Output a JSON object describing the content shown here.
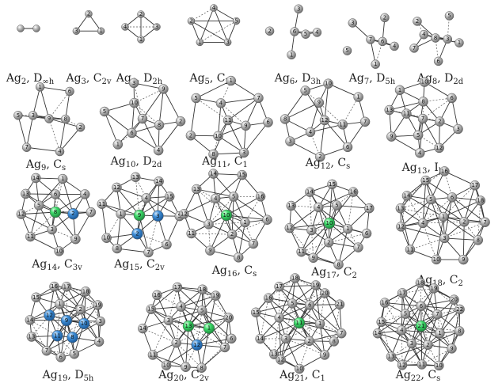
{
  "figure": {
    "colors": {
      "atom": "#9a9a9a",
      "atom_highlight": "#7e7e7e",
      "center": "#3ddc6a",
      "blue": "#3f8fd8",
      "bond": "#333333",
      "background": "#ffffff"
    },
    "clusters": [
      {
        "caption": "Ag2, D∞h",
        "atoms": [
          {},
          {}
        ]
      },
      {
        "caption": "Ag3, C2v",
        "atoms": [
          {
            "label": "2"
          },
          {
            "label": "1"
          },
          {
            "label": "3"
          }
        ]
      },
      {
        "caption": "Ag4, D2h",
        "atoms": [
          {
            "label": "2"
          },
          {
            "label": "3"
          },
          {
            "label": "1"
          },
          {
            "label": "4"
          }
        ]
      },
      {
        "caption": "Ag5, C2v",
        "atoms": [
          {
            "label": "4"
          },
          {
            "label": "5"
          },
          {
            "label": "3"
          },
          {
            "label": "1"
          },
          {
            "label": "2"
          }
        ]
      },
      {
        "caption": "Ag6, D3h",
        "atoms": [
          {
            "label": "6"
          },
          {
            "label": "5"
          },
          {
            "label": "4"
          },
          {
            "label": "1"
          },
          {
            "label": "2"
          },
          {
            "label": "3"
          }
        ]
      },
      {
        "caption": "Ag7, D5h",
        "atoms": [
          {
            "label": "7"
          },
          {
            "label": "6"
          },
          {
            "label": "4"
          },
          {
            "label": "1"
          },
          {
            "label": "5"
          },
          {
            "label": "3"
          },
          {
            "label": "2"
          }
        ]
      },
      {
        "caption": "Ag8, D2d",
        "atoms": [
          {
            "label": "8"
          },
          {
            "label": "3"
          },
          {
            "label": "4"
          },
          {
            "label": "1"
          },
          {
            "label": "6"
          },
          {
            "label": "7"
          },
          {
            "label": "2"
          },
          {
            "label": "5"
          }
        ]
      },
      {
        "caption": "Ag9, Cs",
        "atoms": [
          {
            "label": "9"
          },
          {
            "label": "8"
          },
          {
            "label": "3"
          },
          {
            "label": "2"
          },
          {
            "label": "4"
          },
          {
            "label": "7"
          },
          {
            "label": "5"
          },
          {
            "label": "1"
          },
          {
            "label": "6"
          }
        ]
      },
      {
        "caption": "Ag10, D2d",
        "atoms": [
          {
            "label": "7"
          },
          {
            "label": "8"
          },
          {
            "label": "6"
          },
          {
            "label": "10"
          },
          {
            "label": "2"
          },
          {
            "label": "4"
          },
          {
            "label": "1"
          },
          {
            "label": "5"
          },
          {
            "label": "3"
          },
          {
            "label": "9"
          }
        ]
      },
      {
        "caption": "Ag11, C1",
        "atoms": [
          {
            "label": "11"
          },
          {
            "label": "9"
          },
          {
            "label": "10"
          },
          {
            "label": "4"
          },
          {
            "label": "6"
          },
          {
            "label": "3"
          },
          {
            "label": "8"
          },
          {
            "label": "2"
          },
          {
            "label": "5"
          },
          {
            "label": "1"
          },
          {
            "label": "7"
          }
        ]
      },
      {
        "caption": "Ag12, Cs",
        "atoms": [
          {
            "label": "12"
          },
          {
            "label": "11"
          },
          {
            "label": "4"
          },
          {
            "label": "9"
          },
          {
            "label": "7"
          },
          {
            "label": "6"
          },
          {
            "label": "2"
          },
          {
            "label": "3"
          },
          {
            "label": "8"
          },
          {
            "label": "5"
          },
          {
            "label": "10"
          },
          {
            "label": "1"
          }
        ]
      },
      {
        "caption": "Ag13, Ih",
        "atoms": [
          {
            "label": "7"
          },
          {
            "label": "2"
          },
          {
            "label": "5"
          },
          {
            "label": "11"
          },
          {
            "label": "8"
          },
          {
            "label": "3"
          },
          {
            "label": "12"
          },
          {
            "label": "4"
          },
          {
            "label": "9"
          },
          {
            "label": "13"
          },
          {
            "label": "1"
          },
          {
            "label": "10"
          },
          {
            "label": "6"
          }
        ]
      },
      {
        "caption": "Ag14, C3v",
        "atoms": [
          {
            "label": "8",
            "color": "center"
          },
          {
            "label": "2",
            "color": "blue"
          },
          {
            "label": "3"
          },
          {
            "label": "5"
          },
          {
            "label": "6"
          },
          {
            "label": "7"
          },
          {
            "label": "9"
          },
          {
            "label": "10"
          },
          {
            "label": "11"
          },
          {
            "label": "12"
          },
          {
            "label": "13"
          },
          {
            "label": "14"
          },
          {
            "label": "1"
          },
          {
            "label": "4"
          }
        ]
      },
      {
        "caption": "Ag15, C2v",
        "atoms": [
          {
            "label": "9",
            "color": "center"
          },
          {
            "label": "3",
            "color": "blue"
          },
          {
            "label": "2",
            "color": "blue"
          },
          {
            "label": "1"
          },
          {
            "label": "4"
          },
          {
            "label": "5"
          },
          {
            "label": "6"
          },
          {
            "label": "7"
          },
          {
            "label": "8"
          },
          {
            "label": "10"
          },
          {
            "label": "11"
          },
          {
            "label": "12"
          },
          {
            "label": "13"
          },
          {
            "label": "14"
          },
          {
            "label": "15"
          }
        ]
      },
      {
        "caption": "Ag16, Cs",
        "atoms": [
          {
            "label": "10",
            "color": "center"
          },
          {
            "label": "1"
          },
          {
            "label": "2"
          },
          {
            "label": "3"
          },
          {
            "label": "4"
          },
          {
            "label": "5"
          },
          {
            "label": "6"
          },
          {
            "label": "7"
          },
          {
            "label": "8"
          },
          {
            "label": "9"
          },
          {
            "label": "11"
          },
          {
            "label": "12"
          },
          {
            "label": "13"
          },
          {
            "label": "14"
          },
          {
            "label": "15"
          },
          {
            "label": "16"
          }
        ]
      },
      {
        "caption": "Ag17, C2",
        "atoms": [
          {
            "label": "10",
            "color": "center"
          },
          {
            "label": "1"
          },
          {
            "label": "2"
          },
          {
            "label": "3"
          },
          {
            "label": "4"
          },
          {
            "label": "5"
          },
          {
            "label": "6"
          },
          {
            "label": "7"
          },
          {
            "label": "8"
          },
          {
            "label": "9"
          },
          {
            "label": "11"
          },
          {
            "label": "12"
          },
          {
            "label": "13"
          },
          {
            "label": "14"
          },
          {
            "label": "15"
          },
          {
            "label": "16"
          },
          {
            "label": "17"
          }
        ]
      },
      {
        "caption": "Ag18, C2",
        "atoms": [
          {
            "label": "1"
          },
          {
            "label": "2"
          },
          {
            "label": "3"
          },
          {
            "label": "4"
          },
          {
            "label": "5"
          },
          {
            "label": "6"
          },
          {
            "label": "7"
          },
          {
            "label": "8"
          },
          {
            "label": "9"
          },
          {
            "label": "10"
          },
          {
            "label": "11"
          },
          {
            "label": "12"
          },
          {
            "label": "13"
          },
          {
            "label": "14"
          },
          {
            "label": "15"
          },
          {
            "label": "16"
          },
          {
            "label": "17"
          },
          {
            "label": "18"
          }
        ]
      },
      {
        "caption": "Ag19, D5h",
        "atoms": [
          {
            "label": "9",
            "color": "blue"
          },
          {
            "label": "10",
            "color": "blue"
          },
          {
            "label": "8",
            "color": "blue"
          },
          {
            "label": "11",
            "color": "blue"
          },
          {
            "label": "12",
            "color": "blue"
          },
          {
            "label": "1"
          },
          {
            "label": "2"
          },
          {
            "label": "3"
          },
          {
            "label": "4"
          },
          {
            "label": "5"
          },
          {
            "label": "6"
          },
          {
            "label": "7"
          },
          {
            "label": "13"
          },
          {
            "label": "14"
          },
          {
            "label": "15"
          },
          {
            "label": "16"
          },
          {
            "label": "17"
          },
          {
            "label": "18"
          },
          {
            "label": "19"
          }
        ]
      },
      {
        "caption": "Ag20, C2v",
        "atoms": [
          {
            "label": "13",
            "color": "center"
          },
          {
            "label": "1",
            "color": "center"
          },
          {
            "label": "12",
            "color": "blue"
          },
          {
            "label": "2"
          },
          {
            "label": "3"
          },
          {
            "label": "4"
          },
          {
            "label": "5"
          },
          {
            "label": "6"
          },
          {
            "label": "7"
          },
          {
            "label": "8"
          },
          {
            "label": "9"
          },
          {
            "label": "10"
          },
          {
            "label": "11"
          },
          {
            "label": "14"
          },
          {
            "label": "15"
          },
          {
            "label": "16"
          },
          {
            "label": "17"
          },
          {
            "label": "18"
          },
          {
            "label": "19"
          },
          {
            "label": "20"
          }
        ]
      },
      {
        "caption": "Ag21, C1",
        "atoms": [
          {
            "label": "11",
            "color": "center"
          },
          {
            "label": "1"
          },
          {
            "label": "2"
          },
          {
            "label": "3"
          },
          {
            "label": "4"
          },
          {
            "label": "5"
          },
          {
            "label": "6"
          },
          {
            "label": "7"
          },
          {
            "label": "8"
          },
          {
            "label": "9"
          },
          {
            "label": "10"
          },
          {
            "label": "12"
          },
          {
            "label": "13"
          },
          {
            "label": "14"
          },
          {
            "label": "15"
          },
          {
            "label": "16"
          },
          {
            "label": "17"
          },
          {
            "label": "18"
          },
          {
            "label": "19"
          },
          {
            "label": "20"
          },
          {
            "label": "21"
          }
        ]
      },
      {
        "caption": "Ag22, Cs",
        "atoms": [
          {
            "label": "21",
            "color": "center"
          },
          {
            "label": "1"
          },
          {
            "label": "2"
          },
          {
            "label": "3"
          },
          {
            "label": "4"
          },
          {
            "label": "5"
          },
          {
            "label": "6"
          },
          {
            "label": "7"
          },
          {
            "label": "8"
          },
          {
            "label": "9"
          },
          {
            "label": "10"
          },
          {
            "label": "11"
          },
          {
            "label": "12"
          },
          {
            "label": "13"
          },
          {
            "label": "14"
          },
          {
            "label": "15"
          },
          {
            "label": "16"
          },
          {
            "label": "17"
          },
          {
            "label": "18"
          },
          {
            "label": "19"
          },
          {
            "label": "20"
          },
          {
            "label": "22"
          }
        ]
      }
    ]
  }
}
